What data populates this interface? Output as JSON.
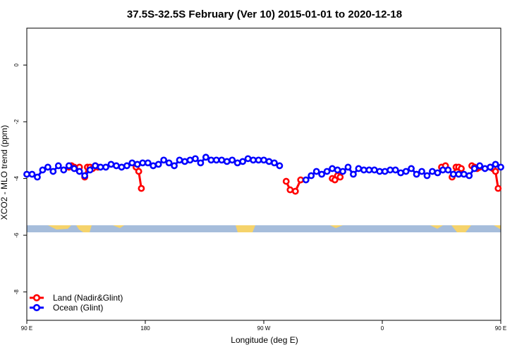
{
  "chart_data": {
    "type": "line",
    "title": "37.5S-32.5S February (Ver 10)   2015-01-01 to 2020-12-18",
    "xlabel": "Longitude (deg E)",
    "ylabel": "XCO2 - MLO trend (ppm)",
    "xlim": [
      90,
      450
    ],
    "ylim": [
      -9,
      1.3
    ],
    "x_ticks": [
      {
        "value": 90,
        "label": "90 E"
      },
      {
        "value": 180,
        "label": "180"
      },
      {
        "value": 270,
        "label": "90 W"
      },
      {
        "value": 360,
        "label": "0"
      },
      {
        "value": 450,
        "label": "90 E"
      },
      {
        "value": 540,
        "label": "180"
      }
    ],
    "y_ticks": [
      0,
      -2,
      -4,
      -6,
      -8
    ],
    "legend_position": "bottom-left",
    "colors": {
      "land": "#ff0000",
      "ocean": "#0000ff",
      "ocean_band": "#a6bddb",
      "land_band": "#f5d36b"
    },
    "series": [
      {
        "name": "Land (Nadir&Glint)",
        "color": "#ff0000",
        "segments": [
          {
            "x": [
              122,
              124,
              126,
              128,
              130
            ],
            "y": [
              -3.6,
              -3.55,
              -3.6,
              -3.65,
              -3.6
            ]
          },
          {
            "x": [
              134,
              136,
              138,
              140,
              142,
              144
            ],
            "y": [
              -3.95,
              -3.6,
              -3.6,
              -3.65,
              -3.55,
              -3.6
            ]
          },
          {
            "x": [
              173,
              175,
              177
            ],
            "y": [
              -3.6,
              -3.75,
              -4.35
            ]
          },
          {
            "x": [
              287,
              290,
              294,
              298
            ],
            "y": [
              -4.1,
              -4.4,
              -4.45,
              -4.05
            ]
          },
          {
            "x": [
              322,
              324,
              326,
              328
            ],
            "y": [
              -4.0,
              -4.05,
              -3.9,
              -3.95
            ]
          },
          {
            "x": [
              405,
              408
            ],
            "y": [
              -3.6,
              -3.55
            ]
          },
          {
            "x": [
              413,
              416,
              418,
              420
            ],
            "y": [
              -3.95,
              -3.6,
              -3.6,
              -3.65
            ]
          },
          {
            "x": [
              428,
              430,
              432,
              434
            ],
            "y": [
              -3.55,
              -3.6,
              -3.65,
              -3.6
            ]
          },
          {
            "x": [
              442,
              444,
              446,
              448
            ],
            "y": [
              -3.6,
              -3.65,
              -3.75,
              -4.35
            ]
          }
        ]
      },
      {
        "name": "Ocean (Glint)",
        "color": "#0000ff",
        "segments": [
          {
            "x": [
              90,
              94,
              98,
              102,
              106,
              110,
              114,
              118,
              122,
              126,
              130,
              134,
              138,
              142,
              146,
              150,
              154,
              158,
              162,
              166,
              170,
              174,
              178,
              182,
              186,
              190,
              194,
              198,
              202,
              206,
              210,
              214,
              218,
              222,
              226,
              230,
              234,
              238,
              242,
              246,
              250,
              254,
              258,
              262,
              266,
              270,
              274,
              278,
              282
            ],
            "y": [
              -3.85,
              -3.85,
              -3.95,
              -3.7,
              -3.6,
              -3.75,
              -3.55,
              -3.7,
              -3.55,
              -3.65,
              -3.75,
              -3.9,
              -3.7,
              -3.55,
              -3.6,
              -3.6,
              -3.5,
              -3.55,
              -3.6,
              -3.55,
              -3.45,
              -3.5,
              -3.45,
              -3.45,
              -3.55,
              -3.5,
              -3.35,
              -3.45,
              -3.55,
              -3.35,
              -3.4,
              -3.35,
              -3.3,
              -3.45,
              -3.25,
              -3.35,
              -3.35,
              -3.35,
              -3.4,
              -3.35,
              -3.45,
              -3.4,
              -3.3,
              -3.35,
              -3.35,
              -3.35,
              -3.4,
              -3.45,
              -3.55
            ]
          },
          {
            "x": [
              302,
              306,
              310,
              314,
              318,
              322,
              326,
              330,
              334,
              338,
              342,
              346,
              350,
              354,
              358,
              362,
              366,
              370,
              374,
              378,
              382,
              386,
              390,
              394,
              398,
              402,
              406,
              410,
              414,
              418,
              422,
              426,
              430,
              434,
              438,
              442,
              446,
              450
            ],
            "y": [
              -4.05,
              -3.9,
              -3.75,
              -3.85,
              -3.75,
              -3.65,
              -3.7,
              -3.75,
              -3.6,
              -3.85,
              -3.65,
              -3.7,
              -3.7,
              -3.7,
              -3.75,
              -3.75,
              -3.7,
              -3.7,
              -3.8,
              -3.75,
              -3.65,
              -3.85,
              -3.75,
              -3.9,
              -3.75,
              -3.8,
              -3.7,
              -3.7,
              -3.85,
              -3.85,
              -3.85,
              -3.9,
              -3.65,
              -3.55,
              -3.65,
              -3.6,
              -3.5,
              -3.6
            ]
          }
        ]
      }
    ]
  }
}
